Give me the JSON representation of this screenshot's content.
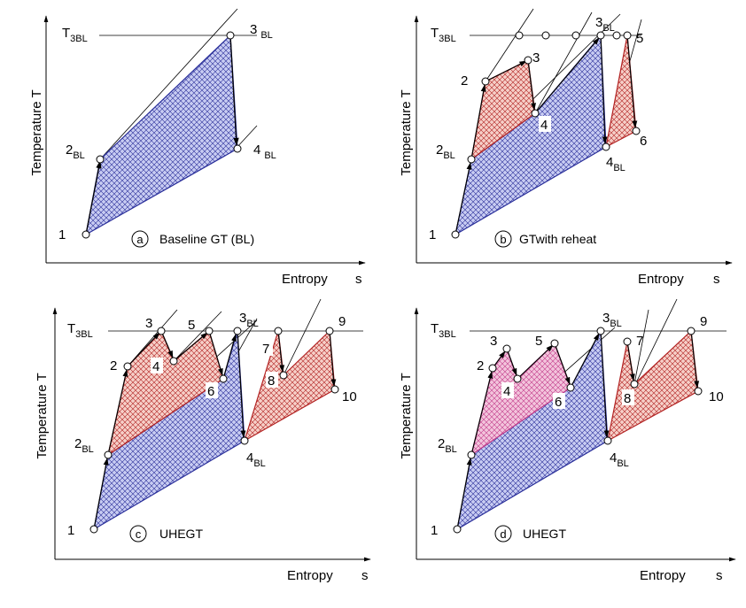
{
  "panels": [
    {
      "id": "a",
      "circle_letter": "a",
      "caption": "Baseline GT (BL)",
      "y_axis_label": "Temperature T",
      "x_axis_label": "Entropy",
      "x_axis_symbol": "s",
      "t3bl_label": "T",
      "t3bl_sub": "3BL",
      "state_labels": [
        {
          "main": "1",
          "sub": ""
        },
        {
          "main": "2",
          "sub": "BL"
        },
        {
          "main": "3",
          "sub": "BL"
        },
        {
          "main": "4",
          "sub": "BL"
        }
      ]
    },
    {
      "id": "b",
      "circle_letter": "b",
      "caption": "GTwith reheat",
      "y_axis_label": "Temperature T",
      "x_axis_label": "Entropy",
      "x_axis_symbol": "s",
      "t3bl_label": "T",
      "t3bl_sub": "3BL",
      "state_labels": [
        {
          "main": "1",
          "sub": ""
        },
        {
          "main": "2",
          "sub": "BL"
        },
        {
          "main": "2",
          "sub": ""
        },
        {
          "main": "3",
          "sub": ""
        },
        {
          "main": "4",
          "sub": ""
        },
        {
          "main": "3",
          "sub": "BL"
        },
        {
          "main": "5",
          "sub": ""
        },
        {
          "main": "4",
          "sub": "BL"
        },
        {
          "main": "6",
          "sub": ""
        }
      ]
    },
    {
      "id": "c",
      "circle_letter": "c",
      "caption": "UHEGT",
      "y_axis_label": "Temperature T",
      "x_axis_label": "Entropy",
      "x_axis_symbol": "s",
      "t3bl_label": "T",
      "t3bl_sub": "3BL",
      "state_labels": [
        {
          "main": "1",
          "sub": ""
        },
        {
          "main": "2",
          "sub": "BL"
        },
        {
          "main": "2",
          "sub": ""
        },
        {
          "main": "3",
          "sub": ""
        },
        {
          "main": "4",
          "sub": ""
        },
        {
          "main": "5",
          "sub": ""
        },
        {
          "main": "6",
          "sub": ""
        },
        {
          "main": "3",
          "sub": "BL"
        },
        {
          "main": "7",
          "sub": ""
        },
        {
          "main": "8",
          "sub": ""
        },
        {
          "main": "4",
          "sub": "BL"
        },
        {
          "main": "9",
          "sub": ""
        },
        {
          "main": "10",
          "sub": ""
        }
      ]
    },
    {
      "id": "d",
      "circle_letter": "d",
      "caption": "UHEGT",
      "y_axis_label": "Temperature T",
      "x_axis_label": "Entropy",
      "x_axis_symbol": "s",
      "t3bl_label": "T",
      "t3bl_sub": "3BL",
      "state_labels": [
        {
          "main": "1",
          "sub": ""
        },
        {
          "main": "2",
          "sub": "BL"
        },
        {
          "main": "2",
          "sub": ""
        },
        {
          "main": "3",
          "sub": ""
        },
        {
          "main": "4",
          "sub": ""
        },
        {
          "main": "5",
          "sub": ""
        },
        {
          "main": "6",
          "sub": ""
        },
        {
          "main": "3",
          "sub": "BL"
        },
        {
          "main": "7",
          "sub": ""
        },
        {
          "main": "8",
          "sub": ""
        },
        {
          "main": "4",
          "sub": "BL"
        },
        {
          "main": "9",
          "sub": ""
        },
        {
          "main": "10",
          "sub": ""
        }
      ]
    }
  ],
  "colors": {
    "baseline_cycle": "#2a2f9a",
    "baseline_fill": "#c8ccf2",
    "reheat_cycle": "#b22222",
    "reheat_fill": "#f6cfc8",
    "low_pressure_fill": "#f3c4dc",
    "axis": "#000000"
  }
}
